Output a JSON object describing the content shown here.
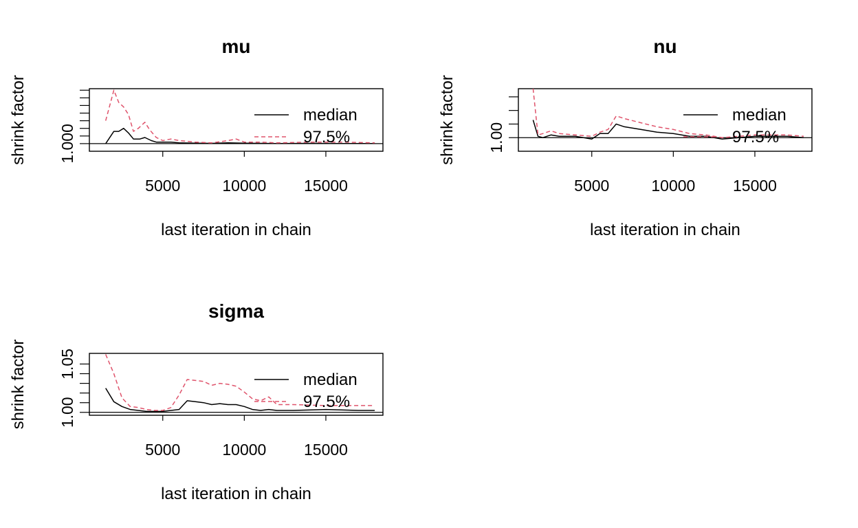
{
  "colors": {
    "median": "#000000",
    "upper": "#DF536B",
    "axis": "#000000",
    "background": "#ffffff"
  },
  "chart_data": [
    {
      "type": "line",
      "title": "mu",
      "xlabel": "last iteration in chain",
      "ylabel": "shrink factor",
      "xlim": [
        500,
        18500
      ],
      "ylim": [
        0.9995,
        1.0036
      ],
      "x_ticks": [
        5000,
        10000,
        15000
      ],
      "x_tick_labels": [
        "5000",
        "10000",
        "15000"
      ],
      "y_ticks": [
        1.0,
        1.0005,
        1.001,
        1.0015,
        1.002,
        1.0025,
        1.003,
        1.0035
      ],
      "y_tick_labels": [
        "1.000"
      ],
      "legend": {
        "position": "top-right",
        "entries": [
          "median",
          "97.5%"
        ]
      },
      "series": [
        {
          "name": "median",
          "style": "solid",
          "x": [
            1500,
            2000,
            2300,
            2600,
            2900,
            3200,
            3600,
            3900,
            4300,
            4600,
            5000,
            5500,
            6000,
            7000,
            8000,
            9000,
            10000,
            11000,
            12000,
            14000,
            16000,
            18000
          ],
          "y": [
            1.0,
            1.0008,
            1.0008,
            1.001,
            1.0007,
            1.0003,
            1.0003,
            1.0004,
            1.0002,
            1.0001,
            1.0001,
            1.0001,
            1.00005,
            1.00003,
            1.00002,
            1.00005,
            1.00003,
            1.00002,
            1.00001,
            1.00002,
            1.00001,
            1.00001
          ]
        },
        {
          "name": "97.5%",
          "style": "dashed",
          "x": [
            1500,
            2000,
            2300,
            2600,
            2900,
            3200,
            3500,
            3900,
            4200,
            4600,
            5000,
            5500,
            6000,
            7000,
            8000,
            9000,
            9500,
            10000,
            11000,
            12000,
            14000,
            16000,
            18000
          ],
          "y": [
            1.0015,
            1.0035,
            1.0027,
            1.0024,
            1.0019,
            1.0008,
            1.001,
            1.0014,
            1.0009,
            1.0004,
            1.0002,
            1.0003,
            1.0002,
            1.0001,
            1.00005,
            1.0002,
            1.0003,
            1.0001,
            1.0001,
            1.00005,
            1.0001,
            1.0001,
            1.00005
          ]
        }
      ]
    },
    {
      "type": "line",
      "title": "nu",
      "xlabel": "last iteration in chain",
      "ylabel": "shrink factor",
      "xlim": [
        500,
        18500
      ],
      "ylim": [
        0.999,
        1.0036
      ],
      "x_ticks": [
        5000,
        10000,
        15000
      ],
      "x_tick_labels": [
        "5000",
        "10000",
        "15000"
      ],
      "y_ticks": [
        1.0,
        1.001,
        1.002,
        1.003
      ],
      "y_tick_labels": [
        "1.00"
      ],
      "legend": {
        "position": "top-right",
        "entries": [
          "median",
          "97.5%"
        ]
      },
      "series": [
        {
          "name": "median",
          "style": "solid",
          "x": [
            1400,
            1700,
            2000,
            2500,
            3000,
            4000,
            5000,
            5500,
            6000,
            6500,
            7000,
            8000,
            9000,
            10000,
            11000,
            12000,
            13000,
            15000,
            17000,
            18000
          ],
          "y": [
            1.0013,
            1.0001,
            1.0,
            1.0002,
            1.0001,
            1.0001,
            0.9999,
            1.0003,
            1.0003,
            1.001,
            1.0008,
            1.0006,
            1.0004,
            1.0003,
            1.0001,
            1.0001,
            0.9999,
            1.0001,
            1.0001,
            1.0
          ]
        },
        {
          "name": "97.5%",
          "style": "dashed",
          "x": [
            1400,
            1700,
            2000,
            2500,
            3000,
            4000,
            5000,
            5500,
            6000,
            6500,
            7000,
            8000,
            9000,
            10000,
            11000,
            12000,
            13000,
            15000,
            17000,
            18000
          ],
          "y": [
            1.0036,
            1.0002,
            1.0003,
            1.0005,
            1.0003,
            1.0002,
            1.0001,
            1.0004,
            1.0006,
            1.0016,
            1.0014,
            1.0011,
            1.0008,
            1.0006,
            1.0003,
            1.0002,
            1.0,
            1.0002,
            1.0002,
            1.0001
          ]
        }
      ]
    },
    {
      "type": "line",
      "title": "sigma",
      "xlabel": "last iteration in chain",
      "ylabel": "shrink factor",
      "xlim": [
        500,
        18500
      ],
      "ylim": [
        0.997,
        1.061
      ],
      "x_ticks": [
        5000,
        10000,
        15000
      ],
      "x_tick_labels": [
        "5000",
        "10000",
        "15000"
      ],
      "y_ticks": [
        1.0,
        1.01,
        1.02,
        1.03,
        1.04,
        1.05
      ],
      "y_tick_labels": [
        "1.00",
        "",
        "",
        "",
        "",
        "1.05"
      ],
      "legend": {
        "position": "top-right",
        "entries": [
          "median",
          "97.5%"
        ]
      },
      "series": [
        {
          "name": "median",
          "style": "solid",
          "x": [
            1500,
            2000,
            2500,
            3000,
            3500,
            4000,
            4500,
            5000,
            5500,
            6000,
            6500,
            7000,
            7500,
            8000,
            8500,
            9000,
            9500,
            10000,
            10500,
            11000,
            11500,
            12000,
            13000,
            15000,
            17000,
            18000
          ],
          "y": [
            1.025,
            1.011,
            1.006,
            1.003,
            1.002,
            1.001,
            1.001,
            1.001,
            1.002,
            1.003,
            1.012,
            1.011,
            1.01,
            1.008,
            1.009,
            1.008,
            1.008,
            1.006,
            1.003,
            1.002,
            1.003,
            1.002,
            1.002,
            1.003,
            1.002,
            1.002
          ]
        },
        {
          "name": "97.5%",
          "style": "dashed",
          "x": [
            1500,
            2000,
            2500,
            3000,
            3500,
            4000,
            4500,
            5000,
            5500,
            6000,
            6500,
            7000,
            7500,
            8000,
            8500,
            9000,
            9500,
            10000,
            10500,
            11000,
            11500,
            12000,
            13000,
            15000,
            17000,
            18000
          ],
          "y": [
            1.06,
            1.04,
            1.015,
            1.006,
            1.005,
            1.003,
            1.002,
            1.002,
            1.005,
            1.018,
            1.034,
            1.033,
            1.032,
            1.028,
            1.03,
            1.029,
            1.027,
            1.021,
            1.014,
            1.012,
            1.016,
            1.008,
            1.008,
            1.007,
            1.007,
            1.007
          ]
        }
      ]
    }
  ]
}
